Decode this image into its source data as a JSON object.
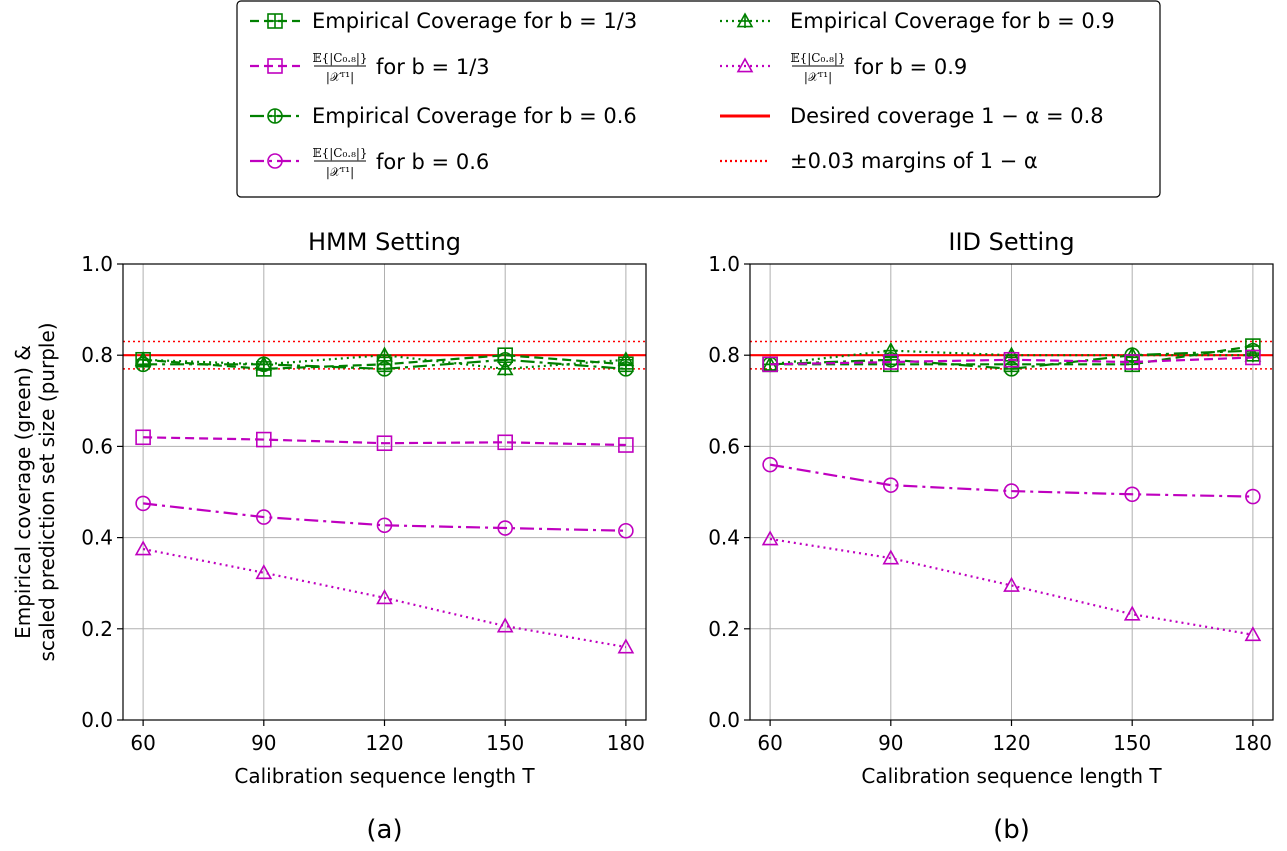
{
  "shared_axes": {
    "xlabel": "Calibration sequence length T",
    "ylabel_line1": "Empirical coverage (green) &",
    "ylabel_line2": "scaled prediction set size (purple)"
  },
  "legend": {
    "entries": [
      {
        "label": "Empirical Coverage for b = 1/3",
        "color": "#008000",
        "dash": "9,5",
        "marker": "square-plus"
      },
      {
        "label_suffix": "for b = 1/3",
        "fraction_top": "𝔼{|C₀.₈|}",
        "fraction_bottom": "|𝒳ᵀ¹|",
        "color": "#bf00bf",
        "dash": "9,5",
        "marker": "square"
      },
      {
        "label": "Empirical Coverage for b = 0.6",
        "color": "#008000",
        "dash": "14,5,3,5",
        "marker": "circle-plus"
      },
      {
        "label_suffix": "for b = 0.6",
        "fraction_top": "𝔼{|C₀.₈|}",
        "fraction_bottom": "|𝒳ᵀ¹|",
        "color": "#bf00bf",
        "dash": "14,5,3,5",
        "marker": "circle"
      },
      {
        "label": "Empirical Coverage for b = 0.9",
        "color": "#008000",
        "dash": "2,4",
        "marker": "triangle-plus"
      },
      {
        "label_suffix": "for b = 0.9",
        "fraction_top": "𝔼{|C₀.₈|}",
        "fraction_bottom": "|𝒳ᵀ¹|",
        "color": "#bf00bf",
        "dash": "2,4",
        "marker": "triangle"
      },
      {
        "label": "Desired coverage 1 − α = 0.8",
        "color": "#ff0000",
        "dash": "",
        "marker": "none"
      },
      {
        "label": "±0.03 margins of 1 − α",
        "color": "#ff0000",
        "dash": "2,3",
        "marker": "none"
      }
    ]
  },
  "chart_data": [
    {
      "type": "line",
      "title": "HMM Setting",
      "panel_label": "(a)",
      "x": [
        60,
        90,
        120,
        150,
        180
      ],
      "xlim": [
        55,
        185
      ],
      "ylim": [
        0,
        1
      ],
      "xticks": [
        "60",
        "90",
        "120",
        "150",
        "180"
      ],
      "yticks": [
        "0.0",
        "0.2",
        "0.4",
        "0.6",
        "0.8",
        "1.0"
      ],
      "grid": true,
      "hlines": [
        {
          "value": 0.8,
          "color": "#ff0000",
          "style": "solid"
        },
        {
          "value": 0.83,
          "color": "#ff0000",
          "style": "dotted"
        },
        {
          "value": 0.77,
          "color": "#ff0000",
          "style": "dotted"
        }
      ],
      "series": [
        {
          "values": [
            0.79,
            0.77,
            0.78,
            0.8,
            0.78
          ],
          "color": "#008000",
          "dash": "9,5",
          "marker": "square-plus"
        },
        {
          "values": [
            0.78,
            0.78,
            0.77,
            0.79,
            0.77
          ],
          "color": "#008000",
          "dash": "14,5,3,5",
          "marker": "circle-plus"
        },
        {
          "values": [
            0.79,
            0.78,
            0.8,
            0.77,
            0.79
          ],
          "color": "#008000",
          "dash": "2,4",
          "marker": "triangle-plus"
        },
        {
          "values": [
            0.62,
            0.615,
            0.607,
            0.609,
            0.603
          ],
          "color": "#bf00bf",
          "dash": "9,5",
          "marker": "square"
        },
        {
          "values": [
            0.475,
            0.445,
            0.427,
            0.421,
            0.415
          ],
          "color": "#bf00bf",
          "dash": "14,5,3,5",
          "marker": "circle"
        },
        {
          "values": [
            0.375,
            0.323,
            0.268,
            0.206,
            0.16
          ],
          "color": "#bf00bf",
          "dash": "2,4",
          "marker": "triangle"
        }
      ]
    },
    {
      "type": "line",
      "title": "IID Setting",
      "panel_label": "(b)",
      "x": [
        60,
        90,
        120,
        150,
        180
      ],
      "xlim": [
        55,
        185
      ],
      "ylim": [
        0,
        1
      ],
      "xticks": [
        "60",
        "90",
        "120",
        "150",
        "180"
      ],
      "yticks": [
        "0.0",
        "0.2",
        "0.4",
        "0.6",
        "0.8",
        "1.0"
      ],
      "grid": true,
      "hlines": [
        {
          "value": 0.8,
          "color": "#ff0000",
          "style": "solid"
        },
        {
          "value": 0.83,
          "color": "#ff0000",
          "style": "dotted"
        },
        {
          "value": 0.77,
          "color": "#ff0000",
          "style": "dotted"
        }
      ],
      "series": [
        {
          "values": [
            0.78,
            0.78,
            0.78,
            0.78,
            0.82
          ],
          "color": "#008000",
          "dash": "9,5",
          "marker": "square-plus"
        },
        {
          "values": [
            0.78,
            0.79,
            0.77,
            0.8,
            0.81
          ],
          "color": "#008000",
          "dash": "14,5,3,5",
          "marker": "circle-plus"
        },
        {
          "values": [
            0.78,
            0.81,
            0.8,
            0.8,
            0.8
          ],
          "color": "#008000",
          "dash": "2,4",
          "marker": "triangle-plus"
        },
        {
          "values": [
            0.78,
            0.785,
            0.79,
            0.785,
            0.795
          ],
          "color": "#bf00bf",
          "dash": "9,5",
          "marker": "square"
        },
        {
          "values": [
            0.56,
            0.515,
            0.502,
            0.495,
            0.49
          ],
          "color": "#bf00bf",
          "dash": "14,5,3,5",
          "marker": "circle"
        },
        {
          "values": [
            0.397,
            0.355,
            0.295,
            0.232,
            0.187
          ],
          "color": "#bf00bf",
          "dash": "2,4",
          "marker": "triangle"
        }
      ]
    }
  ]
}
